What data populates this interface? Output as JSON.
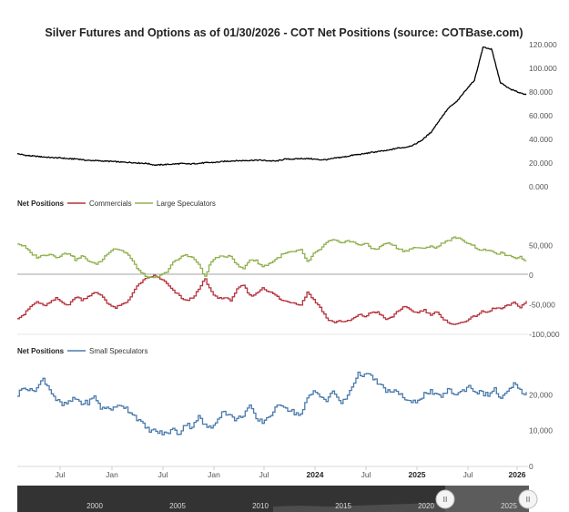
{
  "chart_data": [
    {
      "type": "line",
      "title": "Silver Futures and Options as of 01/30/2026 - COT Net Positions (source: COTBase.com)",
      "ylim": [
        0,
        120
      ],
      "y_ticks": [
        "0.000",
        "20.000",
        "40.000",
        "60.000",
        "80.000",
        "100.000",
        "120.000"
      ],
      "series": [
        {
          "values": [
            27.9,
            26.5,
            25.8,
            25.2,
            24.6,
            24.4,
            23.6,
            23.5,
            22.3,
            22.1,
            21.7,
            21.4,
            20.8,
            20.6,
            20.1,
            19.7,
            18.3,
            18.7,
            19.1,
            19.6,
            19.2,
            19.8,
            20.3,
            20.6,
            21.4,
            21.9,
            22.0,
            22.3,
            22.5,
            22.0,
            21.6,
            23.3,
            23.4,
            23.8,
            23.7,
            22.8,
            23.0,
            24.4,
            25.3,
            26.8,
            27.6,
            28.9,
            29.9,
            30.7,
            32.6,
            33.3,
            35.4,
            39.8,
            46.3,
            56.8,
            66.5,
            72.2,
            81.7,
            90.0,
            118.0,
            116.0,
            88.0,
            83.0,
            80.0,
            78.0
          ]
        }
      ],
      "color": "#000000",
      "grid": false
    },
    {
      "type": "line",
      "legend_title": "Net Positions",
      "ylim": [
        -100000,
        75000
      ],
      "y_ticks": [
        "50,000",
        "0",
        "-50,000",
        "-100,000"
      ],
      "series": [
        {
          "name": "Commercials",
          "color": "#b5323c",
          "values": [
            -72000,
            -66000,
            -53000,
            -45000,
            -52000,
            -47000,
            -39000,
            -47000,
            -50000,
            -36000,
            -42000,
            -35000,
            -30000,
            -34000,
            -48000,
            -56000,
            -51000,
            -45000,
            -27000,
            -13000,
            -6000,
            -1000,
            -5000,
            -13000,
            -26000,
            -34000,
            -44000,
            -39000,
            -27000,
            -6000,
            -28000,
            -39000,
            -38000,
            -43000,
            -25000,
            -17000,
            -35000,
            -32000,
            -21000,
            -28000,
            -34000,
            -43000,
            -45000,
            -47000,
            -50000,
            -28000,
            -43000,
            -55000,
            -74000,
            -80000,
            -77000,
            -79000,
            -74000,
            -67000,
            -70000,
            -62000,
            -63000,
            -75000,
            -72000,
            -60000,
            -54000,
            -59000,
            -64000,
            -58000,
            -67000,
            -61000,
            -76000,
            -80000,
            -84000,
            -79000,
            -75000,
            -69000,
            -62000,
            -63000,
            -55000,
            -57000,
            -52000,
            -47000,
            -54000,
            -44000
          ]
        },
        {
          "name": "Large Speculators",
          "color": "#8fb04c",
          "values": [
            53000,
            48000,
            37000,
            30000,
            33000,
            36000,
            30000,
            35000,
            37000,
            25000,
            32000,
            24000,
            18000,
            24000,
            38000,
            45000,
            42000,
            36000,
            20000,
            5000,
            -3000,
            -6000,
            -2000,
            4000,
            20000,
            27000,
            35000,
            30000,
            20000,
            -4000,
            22000,
            31000,
            30000,
            34000,
            17000,
            10000,
            26000,
            24000,
            14000,
            19000,
            26000,
            34000,
            38000,
            39000,
            42000,
            21000,
            36000,
            44000,
            55000,
            59000,
            54000,
            58000,
            55000,
            51000,
            53000,
            44000,
            45000,
            54000,
            52000,
            45000,
            40000,
            44000,
            47000,
            43000,
            50000,
            45000,
            55000,
            59000,
            64000,
            58000,
            54000,
            47000,
            41000,
            43000,
            36000,
            37000,
            33000,
            28000,
            31000,
            23000
          ]
        }
      ],
      "grid": false
    },
    {
      "type": "line",
      "legend_title": "Net Positions",
      "ylim": [
        0,
        29000
      ],
      "y_ticks": [
        "20,000",
        "10,000",
        "0"
      ],
      "series": [
        {
          "name": "Small Speculators",
          "color": "#4a7aad",
          "values": [
            20000,
            22500,
            21000,
            22000,
            24500,
            21500,
            18500,
            17000,
            18000,
            19000,
            17500,
            18000,
            19500,
            16000,
            16500,
            16000,
            17500,
            16000,
            14500,
            12500,
            10500,
            10000,
            9500,
            9000,
            10500,
            9000,
            12000,
            11000,
            14000,
            11500,
            10500,
            13500,
            15500,
            14000,
            13000,
            14500,
            17000,
            13000,
            12500,
            14000,
            16000,
            17500,
            16000,
            15000,
            14500,
            19000,
            21000,
            20000,
            18000,
            21500,
            17500,
            19000,
            23000,
            26000,
            25500,
            25000,
            23000,
            21500,
            20500,
            21000,
            19000,
            17500,
            18500,
            20000,
            21000,
            19500,
            20000,
            21500,
            20000,
            21000,
            22500,
            21000,
            20500,
            20000,
            21500,
            19000,
            20500,
            23000,
            21000,
            20500
          ]
        }
      ],
      "grid": false
    }
  ],
  "x_axis": {
    "labels": [
      "Jul",
      "Jan",
      "Jul",
      "Jan",
      "Jul",
      "2024",
      "Jul",
      "2025",
      "Jul",
      "2026"
    ],
    "bold": [
      false,
      false,
      false,
      false,
      false,
      true,
      false,
      true,
      false,
      true
    ]
  },
  "navigator": {
    "labels": [
      "2000",
      "2005",
      "2010",
      "2015",
      "2020",
      "2025"
    ],
    "handle_glyph": "II"
  }
}
